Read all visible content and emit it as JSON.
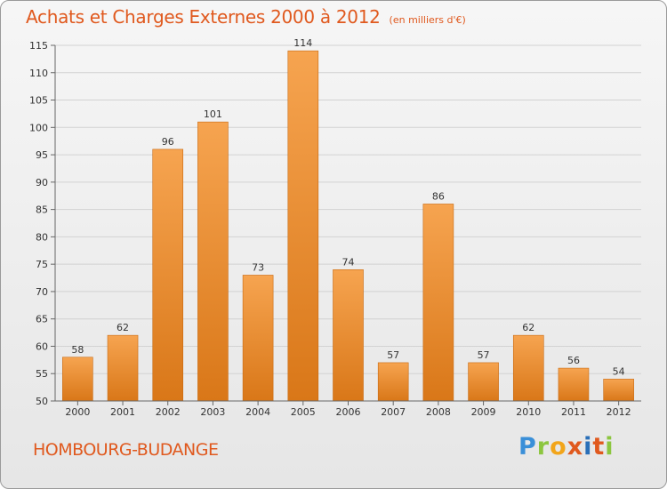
{
  "header": {
    "title": "Achats et Charges Externes 2000 à 2012",
    "unit": "(en milliers d'€)"
  },
  "footer": {
    "commune": "HOMBOURG-BUDANGE",
    "logo_letters": [
      "P",
      "r",
      "o",
      "x",
      "i",
      "t",
      "i"
    ]
  },
  "chart_data": {
    "type": "bar",
    "title": "Achats et Charges Externes 2000 à 2012",
    "subtitle": "(en milliers d'€)",
    "xlabel": "",
    "ylabel": "",
    "categories": [
      "2000",
      "2001",
      "2002",
      "2003",
      "2004",
      "2005",
      "2006",
      "2007",
      "2008",
      "2009",
      "2010",
      "2011",
      "2012"
    ],
    "values": [
      58,
      62,
      96,
      101,
      73,
      114,
      74,
      57,
      86,
      57,
      62,
      56,
      54
    ],
    "ylim": [
      50,
      115
    ],
    "yticks": [
      50,
      55,
      60,
      65,
      70,
      75,
      80,
      85,
      90,
      95,
      100,
      105,
      110,
      115
    ],
    "grid": true,
    "legend": "none",
    "bar_color_top": "#f6a450",
    "bar_color_bottom": "#d97718"
  }
}
